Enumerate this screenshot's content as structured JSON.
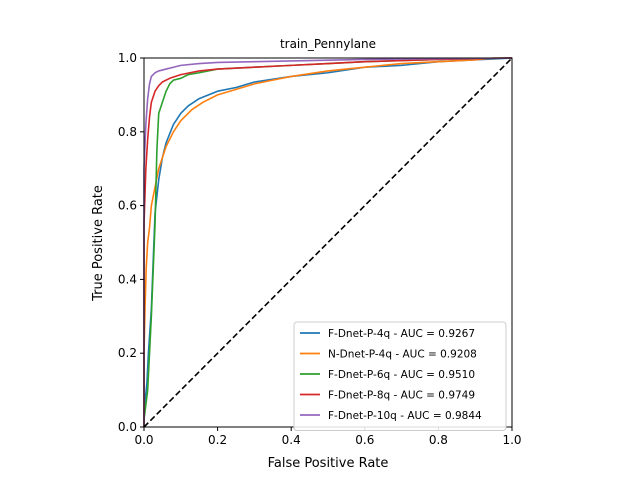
{
  "chart_data": {
    "type": "line",
    "title": "train_Pennylane",
    "xlabel": "False Positive Rate",
    "ylabel": "True Positive Rate",
    "xlim": [
      0.0,
      1.0
    ],
    "ylim": [
      0.0,
      1.0
    ],
    "xticks": [
      "0.0",
      "0.2",
      "0.4",
      "0.6",
      "0.8",
      "1.0"
    ],
    "yticks": [
      "0.0",
      "0.2",
      "0.4",
      "0.6",
      "0.8",
      "1.0"
    ],
    "grid": false,
    "legend_position": "lower-right",
    "diagonal": {
      "x": [
        0,
        1
      ],
      "y": [
        0,
        1
      ],
      "color": "#000000",
      "dash": true
    },
    "series": [
      {
        "name": "F-Dnet-P-4q - AUC = 0.9267",
        "color": "#1f77b4",
        "x": [
          0.0,
          0.0,
          0.008,
          0.012,
          0.02,
          0.025,
          0.03,
          0.04,
          0.05,
          0.06,
          0.08,
          0.1,
          0.12,
          0.15,
          0.2,
          0.25,
          0.3,
          0.4,
          0.5,
          0.6,
          0.7,
          0.8,
          0.9,
          1.0
        ],
        "y": [
          0.0,
          0.04,
          0.12,
          0.2,
          0.32,
          0.45,
          0.58,
          0.67,
          0.73,
          0.77,
          0.82,
          0.85,
          0.87,
          0.89,
          0.91,
          0.92,
          0.935,
          0.95,
          0.96,
          0.975,
          0.98,
          0.99,
          0.995,
          1.0
        ]
      },
      {
        "name": "N-Dnet-P-4q - AUC = 0.9208",
        "color": "#ff7f0e",
        "x": [
          0.0,
          0.0,
          0.003,
          0.006,
          0.01,
          0.015,
          0.02,
          0.03,
          0.04,
          0.05,
          0.06,
          0.08,
          0.1,
          0.13,
          0.16,
          0.2,
          0.25,
          0.3,
          0.35,
          0.4,
          0.5,
          0.6,
          0.7,
          0.8,
          0.9,
          0.95,
          1.0
        ],
        "y": [
          0.0,
          0.2,
          0.33,
          0.43,
          0.5,
          0.54,
          0.6,
          0.65,
          0.7,
          0.73,
          0.76,
          0.8,
          0.83,
          0.86,
          0.88,
          0.9,
          0.915,
          0.93,
          0.94,
          0.95,
          0.965,
          0.975,
          0.985,
          0.99,
          0.995,
          1.0,
          1.0
        ]
      },
      {
        "name": "F-Dnet-P-6q - AUC = 0.9510",
        "color": "#2ca02c",
        "x": [
          0.0,
          0.0,
          0.01,
          0.02,
          0.03,
          0.035,
          0.04,
          0.05,
          0.06,
          0.07,
          0.08,
          0.1,
          0.12,
          0.15,
          0.2,
          0.3,
          0.4,
          0.5,
          0.6,
          0.7,
          0.8,
          0.9,
          1.0
        ],
        "y": [
          0.0,
          0.02,
          0.1,
          0.3,
          0.55,
          0.75,
          0.85,
          0.88,
          0.91,
          0.93,
          0.94,
          0.945,
          0.955,
          0.96,
          0.97,
          0.975,
          0.98,
          0.985,
          0.99,
          0.993,
          0.996,
          0.998,
          1.0
        ]
      },
      {
        "name": "F-Dnet-P-8q - AUC = 0.9749",
        "color": "#d62728",
        "x": [
          0.0,
          0.0,
          0.005,
          0.01,
          0.015,
          0.02,
          0.03,
          0.04,
          0.05,
          0.07,
          0.1,
          0.15,
          0.2,
          0.3,
          0.4,
          0.5,
          0.6,
          0.7,
          0.8,
          0.9,
          1.0
        ],
        "y": [
          0.0,
          0.55,
          0.7,
          0.78,
          0.84,
          0.88,
          0.91,
          0.925,
          0.935,
          0.945,
          0.955,
          0.965,
          0.97,
          0.975,
          0.98,
          0.985,
          0.99,
          0.993,
          0.996,
          0.998,
          1.0
        ]
      },
      {
        "name": "F-Dnet-P-10q - AUC = 0.9844",
        "color": "#9467bd",
        "x": [
          0.0,
          0.0,
          0.005,
          0.01,
          0.015,
          0.02,
          0.03,
          0.04,
          0.06,
          0.08,
          0.1,
          0.15,
          0.2,
          0.3,
          0.4,
          0.5,
          0.6,
          0.7,
          0.8,
          0.9,
          1.0
        ],
        "y": [
          0.0,
          0.7,
          0.82,
          0.89,
          0.93,
          0.95,
          0.96,
          0.965,
          0.97,
          0.975,
          0.98,
          0.985,
          0.988,
          0.99,
          0.992,
          0.994,
          0.996,
          0.997,
          0.998,
          0.999,
          1.0
        ]
      }
    ]
  }
}
